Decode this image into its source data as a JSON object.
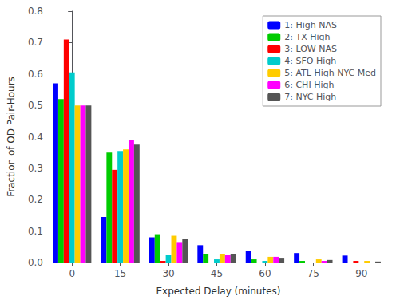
{
  "chart_data": {
    "type": "bar",
    "xlabel": "Expected Delay (minutes)",
    "ylabel": "Fraction of OD Pair-Hours",
    "x": [
      0,
      15,
      30,
      45,
      60,
      75,
      90
    ],
    "series": [
      {
        "name": "1: High NAS",
        "color": "#0000FF",
        "values": [
          0.57,
          0.145,
          0.08,
          0.055,
          0.038,
          0.03,
          0.022
        ]
      },
      {
        "name": "2: TX High",
        "color": "#00CC00",
        "values": [
          0.52,
          0.35,
          0.09,
          0.028,
          0.01,
          0.005,
          0.0
        ]
      },
      {
        "name": "3: LOW NAS",
        "color": "#FF0000",
        "values": [
          0.71,
          0.295,
          0.005,
          0.0,
          0.0,
          0.0,
          0.005
        ]
      },
      {
        "name": "4: SFO High",
        "color": "#00CCCC",
        "values": [
          0.605,
          0.355,
          0.025,
          0.01,
          0.005,
          0.0,
          0.0
        ]
      },
      {
        "name": "5: ATL High NYC Med",
        "color": "#FFCC00",
        "values": [
          0.5,
          0.36,
          0.085,
          0.028,
          0.018,
          0.01,
          0.005
        ]
      },
      {
        "name": "6: CHI High",
        "color": "#FF00FF",
        "values": [
          0.5,
          0.39,
          0.065,
          0.025,
          0.018,
          0.005,
          0.0
        ]
      },
      {
        "name": "7: NYC High",
        "color": "#555555",
        "values": [
          0.5,
          0.375,
          0.075,
          0.028,
          0.015,
          0.008,
          0.003
        ]
      }
    ],
    "xlim": [
      -7,
      98
    ],
    "xticks": [
      0,
      15,
      30,
      45,
      60,
      75,
      90
    ],
    "ylim": [
      0,
      0.8
    ],
    "yticks": [
      {
        "value": 0.0,
        "label": "0.0"
      },
      0.1,
      0.2,
      0.3,
      0.4,
      0.5,
      0.6,
      0.7,
      0.8
    ],
    "grid": false,
    "legend": "upper right"
  }
}
